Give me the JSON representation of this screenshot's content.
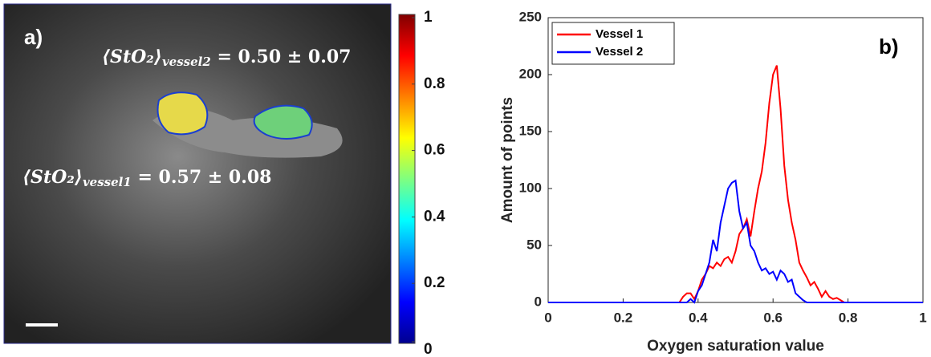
{
  "chart_data": [
    {
      "type": "image",
      "panel_label": "a)",
      "annotations": [
        {
          "bracket": "⟨StO₂⟩",
          "subscript": "vessel2",
          "rest": " = 0.50 ± 0.07"
        },
        {
          "bracket": "⟨StO₂⟩",
          "subscript": "vessel1",
          "rest": " = 0.57 ± 0.08"
        }
      ],
      "clim": [
        0,
        1
      ],
      "colorbar_ticks": [
        0,
        0.2,
        0.4,
        0.6,
        0.8,
        1
      ],
      "colormap": "jet"
    },
    {
      "type": "line",
      "panel_label": "b)",
      "xlabel": "Oxygen saturation value",
      "ylabel": "Amount of points",
      "x": [
        0,
        0.34,
        0.35,
        0.36,
        0.37,
        0.38,
        0.39,
        0.4,
        0.41,
        0.42,
        0.43,
        0.44,
        0.45,
        0.46,
        0.47,
        0.48,
        0.49,
        0.5,
        0.51,
        0.52,
        0.53,
        0.54,
        0.55,
        0.56,
        0.57,
        0.58,
        0.59,
        0.6,
        0.61,
        0.62,
        0.63,
        0.64,
        0.65,
        0.66,
        0.67,
        0.68,
        0.69,
        0.7,
        0.71,
        0.72,
        0.73,
        0.74,
        0.75,
        0.76,
        0.77,
        0.78,
        0.79,
        0.8,
        1
      ],
      "series": [
        {
          "name": "Vessel 1",
          "color": "#ff0000",
          "values": [
            0,
            0,
            0,
            5,
            8,
            8,
            3,
            10,
            20,
            25,
            32,
            30,
            35,
            32,
            38,
            40,
            35,
            45,
            60,
            65,
            73,
            58,
            80,
            100,
            115,
            140,
            175,
            200,
            208,
            170,
            120,
            90,
            70,
            55,
            35,
            28,
            22,
            15,
            18,
            12,
            5,
            10,
            5,
            3,
            4,
            2,
            0,
            0,
            0
          ]
        },
        {
          "name": "Vessel 2",
          "color": "#0000ff",
          "values": [
            0,
            0,
            0,
            0,
            0,
            3,
            0,
            10,
            15,
            25,
            35,
            55,
            45,
            70,
            85,
            100,
            105,
            107,
            80,
            65,
            70,
            50,
            45,
            35,
            28,
            30,
            25,
            27,
            20,
            28,
            25,
            18,
            20,
            8,
            5,
            2,
            0,
            0,
            0,
            0,
            0,
            0,
            0,
            0,
            0,
            0,
            0,
            0,
            0
          ]
        }
      ],
      "xlim": [
        0,
        1
      ],
      "ylim": [
        0,
        250
      ],
      "xticks": [
        0,
        0.2,
        0.4,
        0.6,
        0.8,
        1
      ],
      "yticks": [
        0,
        50,
        100,
        150,
        200,
        250
      ],
      "legend": "upper left"
    }
  ]
}
